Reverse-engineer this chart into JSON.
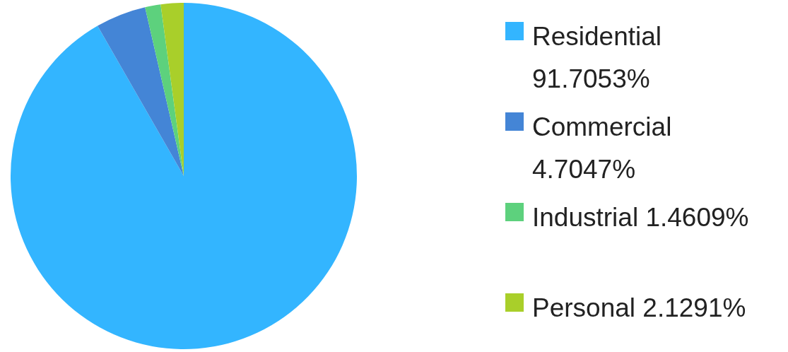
{
  "chart_data": {
    "type": "pie",
    "categories": [
      "Residential",
      "Commercial",
      "Industrial",
      "Personal"
    ],
    "values": [
      91.7053,
      4.7047,
      1.4609,
      2.1291
    ],
    "colors": [
      "#33b5ff",
      "#4485d6",
      "#5dd17d",
      "#a9cf2a"
    ],
    "value_labels": [
      "91.7053%",
      "4.7047%",
      "1.4609%",
      "2.1291%"
    ],
    "legend": "right"
  }
}
